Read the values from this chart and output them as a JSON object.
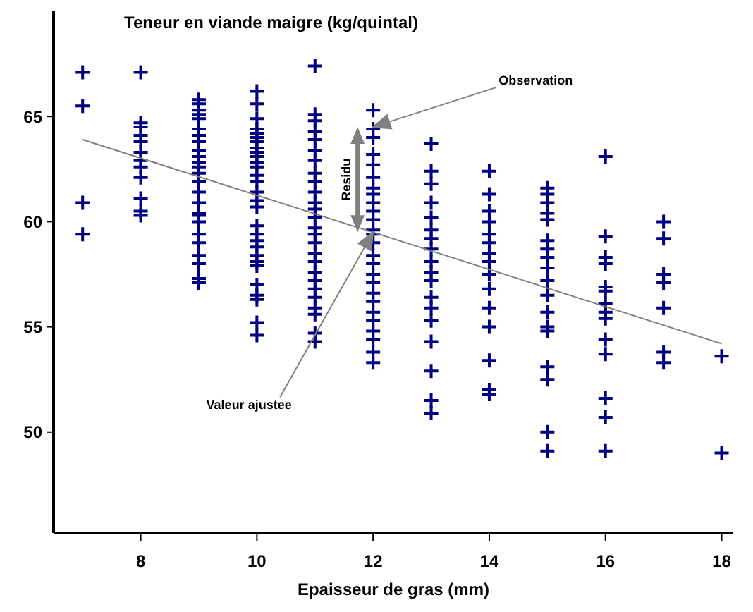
{
  "chart_data": {
    "type": "scatter",
    "title": "Teneur en viande maigre (kg/quintal)",
    "xlabel": "Epaisseur de gras (mm)",
    "xlim": [
      6.5,
      18.2
    ],
    "ylim": [
      45.2,
      70
    ],
    "xticks": [
      8,
      10,
      12,
      14,
      16,
      18
    ],
    "yticks": [
      50,
      55,
      60,
      65
    ],
    "grid": false,
    "series": [
      {
        "marker": "cross",
        "color": "#000080",
        "x": [
          7,
          7,
          7,
          7,
          8,
          8,
          8,
          8,
          8,
          8,
          8,
          8,
          8,
          8,
          8,
          8,
          9,
          9,
          9,
          9,
          9,
          9,
          9,
          9,
          9,
          9,
          9,
          9,
          9,
          9,
          9,
          9,
          9,
          9,
          9,
          9,
          9,
          9,
          9,
          9,
          9,
          10,
          10,
          10,
          10,
          10,
          10,
          10,
          10,
          10,
          10,
          10,
          10,
          10,
          10,
          10,
          10,
          10,
          10,
          10,
          10,
          10,
          10,
          10,
          10,
          10,
          10,
          10,
          10,
          10,
          11,
          11,
          11,
          11,
          11,
          11,
          11,
          11,
          11,
          11,
          11,
          11,
          11,
          11,
          11,
          11,
          11,
          11,
          11,
          11,
          11,
          11,
          11,
          11,
          11,
          11,
          12,
          12,
          12,
          12,
          12,
          12,
          12,
          12,
          12,
          12,
          12,
          12,
          12,
          12,
          12,
          12,
          12,
          12,
          12,
          12,
          12,
          12,
          12,
          12,
          12,
          12,
          13,
          13,
          13,
          13,
          13,
          13,
          13,
          13,
          13,
          13,
          13,
          13,
          13,
          13,
          13,
          13,
          13,
          13,
          14,
          14,
          14,
          14,
          14,
          14,
          14,
          14,
          14,
          14,
          14,
          14,
          14,
          14,
          14,
          15,
          15,
          15,
          15,
          15,
          15,
          15,
          15,
          15,
          15,
          15,
          15,
          15,
          15,
          15,
          15,
          15,
          15,
          16,
          16,
          16,
          16,
          16,
          16,
          16,
          16,
          16,
          16,
          16,
          16,
          16,
          16,
          17,
          17,
          17,
          17,
          17,
          17,
          17,
          18,
          18
        ],
        "values": [
          67.1,
          65.5,
          60.9,
          59.4,
          67.1,
          64.7,
          64.5,
          64.1,
          63.8,
          63.3,
          62.9,
          62.6,
          62.1,
          61.1,
          60.5,
          60.3,
          65.8,
          65.6,
          65.3,
          65.1,
          64.9,
          64.4,
          64.1,
          63.8,
          63.4,
          63.1,
          62.8,
          62.6,
          62.3,
          61.9,
          61.4,
          60.9,
          60.4,
          60.3,
          60,
          59.4,
          59,
          58.4,
          58,
          57.3,
          57.1,
          66.2,
          65.6,
          64.9,
          64.4,
          64.2,
          64,
          63.8,
          63.5,
          63.3,
          63.1,
          62.8,
          62.6,
          62.2,
          61.9,
          61.4,
          61,
          60.7,
          59.8,
          59.4,
          59.1,
          58.8,
          58.4,
          58.1,
          57.9,
          57,
          56.5,
          56.3,
          55.2,
          54.6,
          67.4,
          65.1,
          64.8,
          64.3,
          63.9,
          63.4,
          62.9,
          62.3,
          61.9,
          61.4,
          60.9,
          60.6,
          60.2,
          59.7,
          59.4,
          59,
          58.5,
          58.1,
          57.6,
          57.2,
          56.8,
          56.4,
          55.9,
          55.6,
          54.7,
          54.3,
          65.3,
          64.4,
          64,
          63.2,
          62.7,
          62.1,
          61.6,
          61.3,
          60.9,
          60.5,
          60.1,
          59.6,
          59.4,
          59,
          58.4,
          58,
          57.5,
          57.1,
          56.6,
          56.2,
          55.7,
          55.3,
          54.8,
          54.4,
          53.8,
          53.3,
          63.7,
          62.4,
          61.8,
          60.9,
          60.2,
          59.6,
          59.2,
          58.7,
          58.1,
          57.6,
          57.2,
          56.4,
          55.9,
          55.3,
          54.3,
          52.9,
          51.5,
          50.9,
          62.4,
          61.3,
          60.5,
          60,
          59.4,
          59,
          58.5,
          58.1,
          57.5,
          56.8,
          55.9,
          55,
          53.4,
          52,
          51.8,
          61.6,
          61.3,
          60.9,
          60.4,
          60.1,
          59.1,
          58.7,
          58.3,
          57.8,
          57.2,
          56.5,
          55.7,
          55,
          54.8,
          53.1,
          52.5,
          50,
          49.1,
          63.1,
          59.3,
          58.3,
          58,
          56.9,
          56.7,
          56.1,
          55.7,
          55.4,
          54.4,
          53.7,
          51.6,
          50.7,
          49.1,
          60,
          59.2,
          57.5,
          57.1,
          55.9,
          53.8,
          53.3,
          53.6,
          49
        ]
      },
      {
        "type": "line",
        "color": "#808080",
        "x": [
          7,
          18
        ],
        "values": [
          63.9,
          54.2
        ]
      }
    ],
    "annotations": [
      {
        "text": "Observation",
        "x": 12,
        "y": 64.5
      },
      {
        "text": "Valeur ajustee",
        "x": 12,
        "y": 59.5
      },
      "Residu"
    ]
  }
}
